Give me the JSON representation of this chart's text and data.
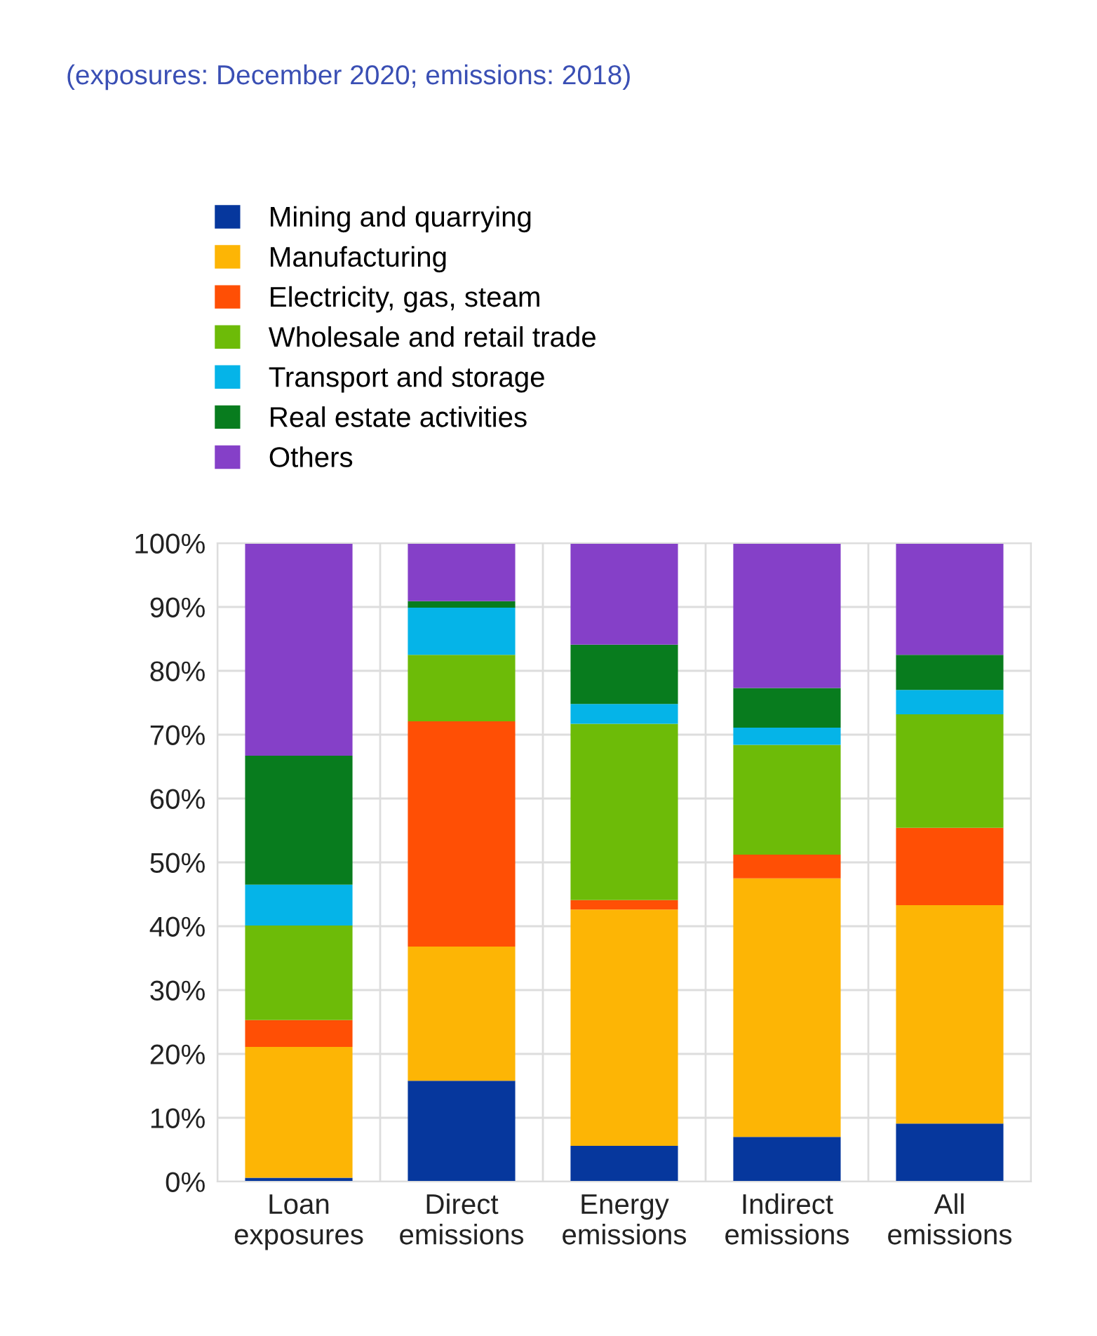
{
  "chart_data": {
    "type": "bar",
    "stacked": true,
    "subtitle": "(exposures: December 2020; emissions: 2018)",
    "categories": [
      "Loan\nexposures",
      "Direct\nemissions",
      "Energy\nemissions",
      "Indirect\nemissions",
      "All\nemissions"
    ],
    "series": [
      {
        "name": "Mining and quarrying",
        "color": "#06379d",
        "values": [
          0.6,
          15.8,
          5.6,
          7.0,
          9.1
        ]
      },
      {
        "name": "Manufacturing",
        "color": "#fdb505",
        "values": [
          20.5,
          21.0,
          37.0,
          40.5,
          34.2
        ]
      },
      {
        "name": "Electricity, gas, steam",
        "color": "#ff4f05",
        "values": [
          4.2,
          35.3,
          1.5,
          3.7,
          12.1
        ]
      },
      {
        "name": "Wholesale and retail trade",
        "color": "#6dbb08",
        "values": [
          14.8,
          10.4,
          27.6,
          17.2,
          17.8
        ]
      },
      {
        "name": "Transport and storage",
        "color": "#05b4e8",
        "values": [
          6.4,
          7.4,
          3.1,
          2.7,
          3.8
        ]
      },
      {
        "name": "Real estate activities",
        "color": "#087c1e",
        "values": [
          20.2,
          1.0,
          9.3,
          6.2,
          5.5
        ]
      },
      {
        "name": "Others",
        "color": "#8540c8",
        "values": [
          33.3,
          9.1,
          15.9,
          22.7,
          17.5
        ]
      }
    ],
    "ylim": [
      0,
      100
    ],
    "yticks": [
      {
        "value": 0,
        "label": "0%"
      },
      {
        "value": 10,
        "label": "10%"
      },
      {
        "value": 20,
        "label": "20%"
      },
      {
        "value": 30,
        "label": "30%"
      },
      {
        "value": 40,
        "label": "40%"
      },
      {
        "value": 50,
        "label": "50%"
      },
      {
        "value": 60,
        "label": "60%"
      },
      {
        "value": 70,
        "label": "70%"
      },
      {
        "value": 80,
        "label": "80%"
      },
      {
        "value": 90,
        "label": "90%"
      },
      {
        "value": 100,
        "label": "100%"
      }
    ],
    "grid": true,
    "legend": "top"
  }
}
